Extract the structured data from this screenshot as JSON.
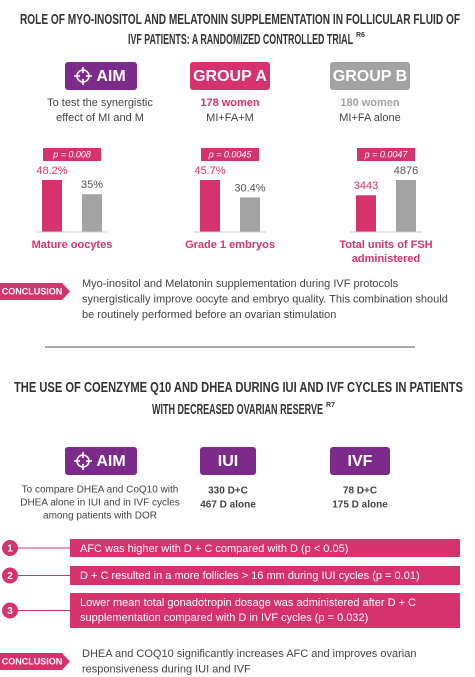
{
  "section1": {
    "title_lines": [
      "ROLE OF MYO-INOSITOL AND MELATONIN SUPPLEMENTATION IN FOLLICULAR FLUID OF",
      "IVF PATIENTS: A RANDOMIZED CONTROLLED TRIAL"
    ],
    "ref": "R6",
    "aim": {
      "label": "AIM",
      "text_lines": [
        "To test the synergistic",
        "effect of MI and M"
      ]
    },
    "group_a": {
      "label": "GROUP A",
      "count": "178 women",
      "treatment": "MI+FA+M"
    },
    "group_b": {
      "label": "GROUP B",
      "count": "180 women",
      "treatment": "MI+FA alone"
    },
    "bar_colors": [
      "#d6336c",
      "#a3a3a3"
    ],
    "charts": [
      {
        "p_label": "p = 0.008",
        "values": [
          48.2,
          35
        ],
        "value_labels": [
          "48.2%",
          "35%"
        ],
        "label_lines": [
          "Mature oocytes"
        ]
      },
      {
        "p_label": "p = 0.0045",
        "values": [
          45.7,
          30.4
        ],
        "value_labels": [
          "45.7%",
          "30.4%"
        ],
        "label_lines": [
          "Grade 1 embryos"
        ]
      },
      {
        "p_label": "p = 0.0047",
        "values": [
          3443,
          4876
        ],
        "label_lines": [
          "Total units of FSH",
          "administered"
        ]
      }
    ],
    "conclusion": {
      "tag": "CONCLUSION",
      "text_lines": [
        "Myo-inositol and Melatonin supplementation during IVF protocols",
        "synergistically improve oocyte and embryo quality. This combination should",
        "be routinely performed before an ovarian stimulation"
      ]
    }
  },
  "section2": {
    "title_lines": [
      "THE USE OF COENZYME Q10 AND DHEA DURING IUI AND IVF CYCLES IN PATIENTS",
      "WITH DECREASED OVARIAN RESERVE"
    ],
    "ref": "R7",
    "aim": {
      "label": "AIM",
      "text_lines": [
        "To compare DHEA and CoQ10 with",
        "DHEA alone in IUI and in IVF cycles",
        "among patients with DOR"
      ]
    },
    "iui": {
      "label": "IUI",
      "lines": [
        "330 D+C",
        "467 D alone"
      ]
    },
    "ivf": {
      "label": "IVF",
      "lines": [
        "78 D+C",
        "175 D alone"
      ]
    },
    "items": [
      {
        "number": "1",
        "text_lines": [
          "AFC was higher with D + C compared with D (p < 0.05)"
        ]
      },
      {
        "number": "2",
        "text_lines": [
          "D + C resulted in a more follicles > 16 mm during IUI cycles (p = 0.01)"
        ]
      },
      {
        "number": "3",
        "text_lines": [
          "Lower mean total gonadotropin dosage was administered after D + C",
          "supplementation compared with D in IVF cycles (p = 0.032)"
        ]
      }
    ],
    "conclusion": {
      "tag": "CONCLUSION",
      "text_lines": [
        "DHEA and COQ10 significantly increases AFC and improves ovarian",
        "responsiveness during IUI and IVF"
      ]
    }
  }
}
